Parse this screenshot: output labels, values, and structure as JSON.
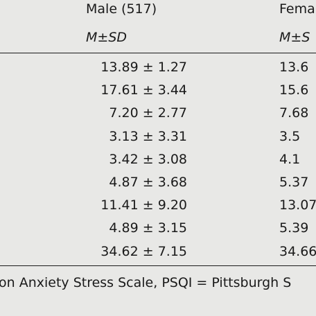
{
  "header": {
    "male_group": "Male (517)",
    "female_group": "Fema",
    "male_stat": "M±SD",
    "female_stat": "M±S"
  },
  "rows": [
    {
      "male": "13.89 ± 1.27",
      "female": "13.6"
    },
    {
      "male": "17.61 ± 3.44",
      "female": "15.6"
    },
    {
      "male": "7.20 ± 2.77",
      "female": "7.68"
    },
    {
      "male": "3.13 ± 3.31",
      "female": "3.5"
    },
    {
      "male": "3.42 ± 3.08",
      "female": "4.1"
    },
    {
      "male": "4.87 ± 3.68",
      "female": "5.37"
    },
    {
      "male": "11.41 ± 9.20",
      "female": "13.07"
    },
    {
      "male": "4.89 ± 3.15",
      "female": "5.39"
    },
    {
      "male": "34.62 ± 7.15",
      "female": "34.66"
    }
  ],
  "footnote": "on Anxiety Stress Scale, PSQI = Pittsburgh S"
}
